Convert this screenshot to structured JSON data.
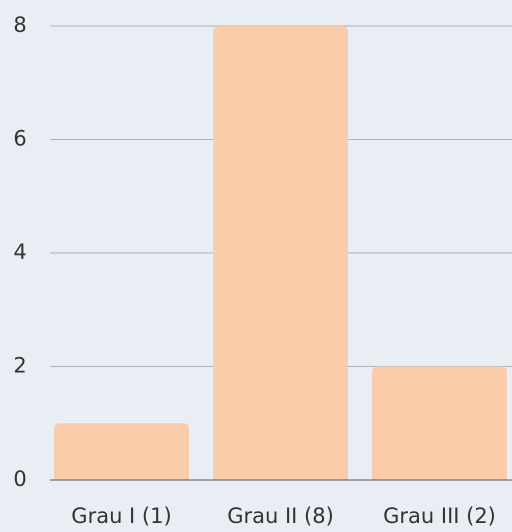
{
  "chart_data": {
    "type": "bar",
    "categories": [
      "Grau I (1)",
      "Grau II (8)",
      "Grau III (2)"
    ],
    "values": [
      1,
      8,
      2
    ],
    "color": "#fbcca9",
    "ylim": [
      0,
      8
    ],
    "yticks": [
      0,
      2,
      4,
      6,
      8
    ],
    "grid": true
  }
}
